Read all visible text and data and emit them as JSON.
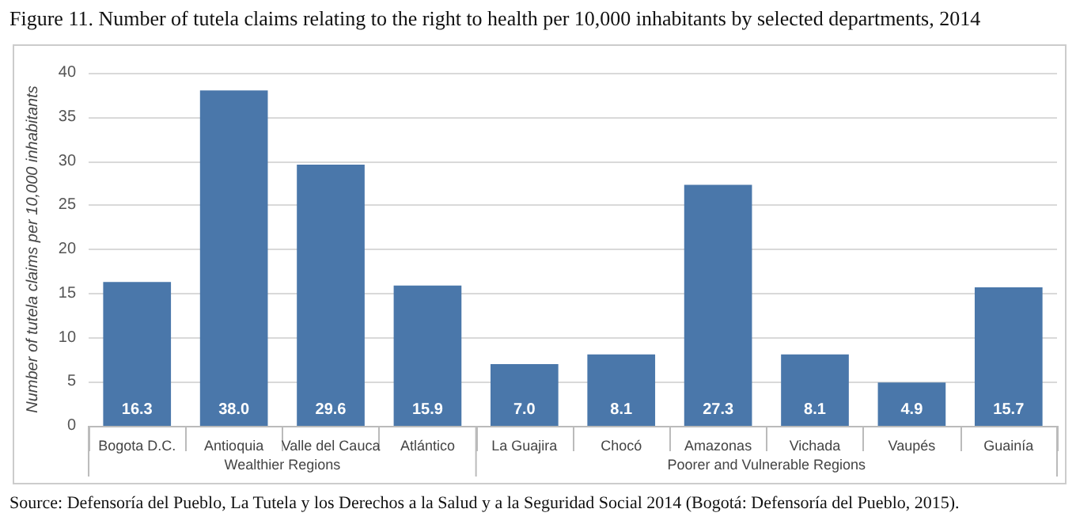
{
  "chart_data": {
    "type": "bar",
    "title": "Figure 11. Number of tutela claims relating to the right to health per 10,000 inhabitants by selected departments, 2014",
    "ylabel": "Number of tutela claims per 10,000 inhabitants",
    "categories": [
      "Bogota D.C.",
      "Antioquia",
      "Valle del Cauca",
      "Atlántico",
      "La Guajira",
      "Chocó",
      "Amazonas",
      "Vichada",
      "Vaupés",
      "Guainía"
    ],
    "values": [
      16.3,
      38.0,
      29.6,
      15.9,
      7.0,
      8.1,
      27.3,
      8.1,
      4.9,
      15.7
    ],
    "value_labels": [
      "16.3",
      "38.0",
      "29.6",
      "15.9",
      "7.0",
      "8.1",
      "27.3",
      "8.1",
      "4.9",
      "15.7"
    ],
    "color": "#4a77aa",
    "ylim": [
      0,
      40
    ],
    "yticks": [
      0,
      5,
      10,
      15,
      20,
      25,
      30,
      35,
      40
    ],
    "grid": "y",
    "annotations": [
      "Wealthier Regions",
      "Poorer and Vulnerable Regions",
      "Source: Defensoría del Pueblo, La Tutela y los Derechos a la Salud y a la Seguridad Social 2014 (Bogotá: Defensoría del Pueblo, 2015)."
    ]
  }
}
